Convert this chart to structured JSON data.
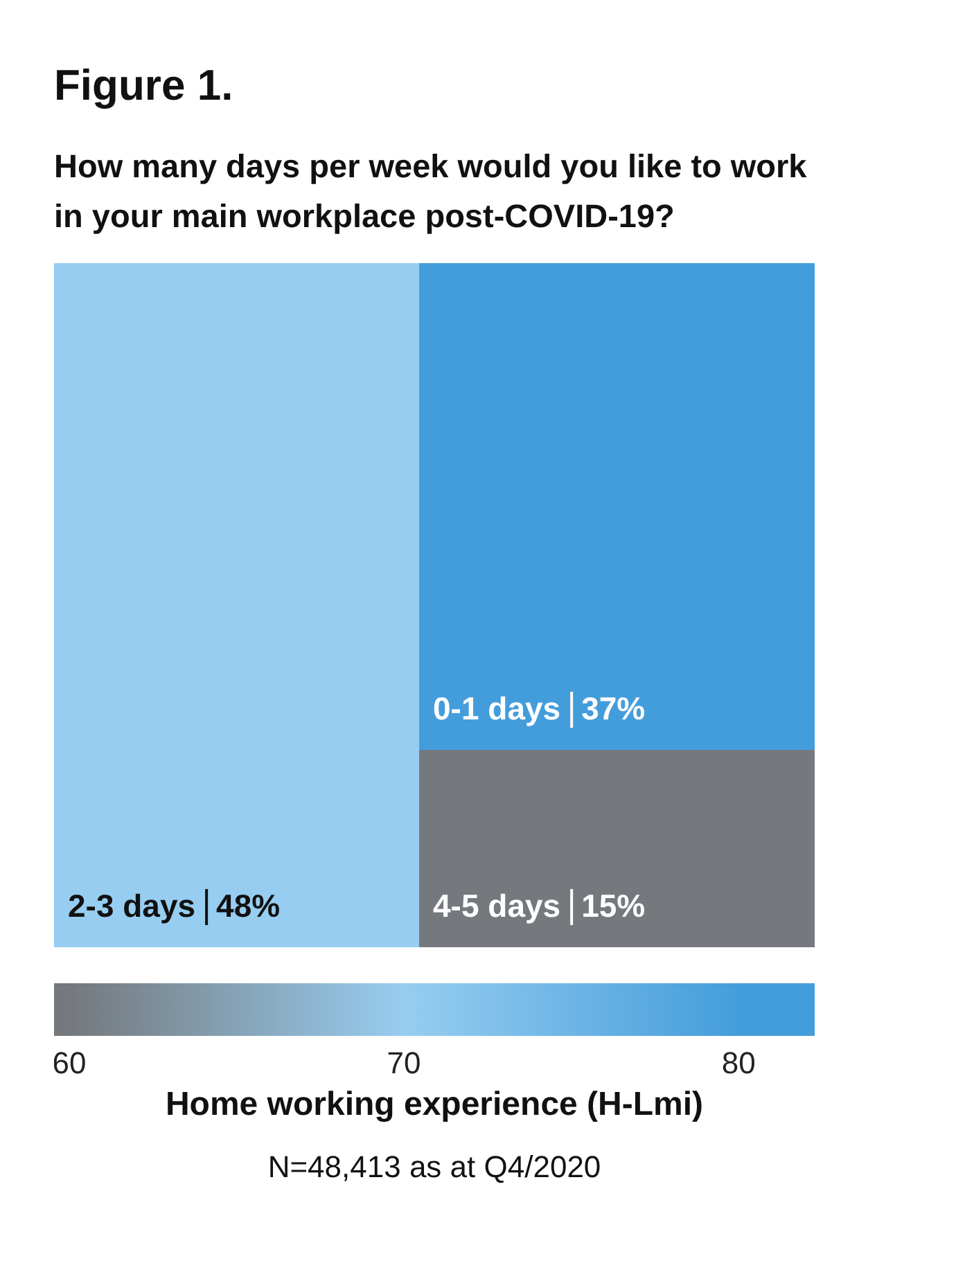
{
  "chart_data": [
    {
      "type": "other",
      "title": "Figure 1.",
      "subtitle": "How many days per week would you like to work in your main workplace post-COVID-19?",
      "categories": [
        "2-3 days",
        "0-1 days",
        "4-5 days"
      ],
      "values": [
        48,
        37,
        15
      ],
      "value_labels": [
        "48%",
        "37%",
        "15%"
      ],
      "colors": [
        "#97cdf0",
        "#449ddb",
        "#75797d"
      ],
      "annotations": [
        "N=48,413 as at Q4/2020"
      ]
    },
    {
      "type": "other",
      "colors": [
        "#75797d",
        "#97cdf0",
        "#449ddb"
      ],
      "annotations": [
        "60",
        "70",
        "80"
      ],
      "xlabel": "Home working experience (H-Lmi)"
    }
  ]
}
